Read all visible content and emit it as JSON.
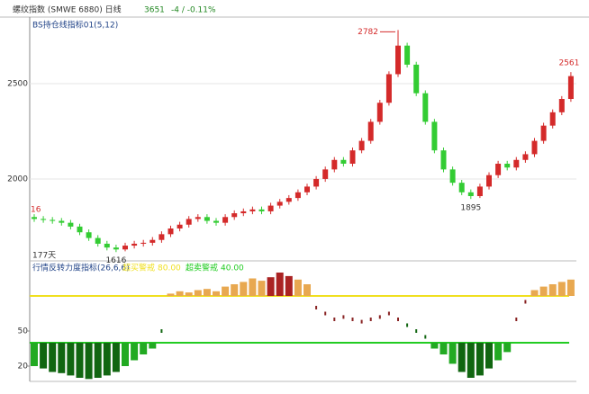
{
  "header": {
    "title": "螺纹指数 (SMWE 6880) 日线",
    "price": "3651",
    "change": "-4 / -0.11%"
  },
  "chart_data": [
    {
      "type": "candlestick",
      "title": "BS持仓线指标01(5,12)",
      "open": [
        1800,
        1790,
        1785,
        1780,
        1770,
        1750,
        1720,
        1690,
        1660,
        1640,
        1630,
        1650,
        1660,
        1665,
        1680,
        1710,
        1740,
        1760,
        1790,
        1800,
        1780,
        1770,
        1800,
        1820,
        1830,
        1840,
        1830,
        1860,
        1880,
        1900,
        1930,
        1960,
        2000,
        2050,
        2100,
        2080,
        2150,
        2200,
        2300,
        2400,
        2550,
        2700,
        2600,
        2450,
        2300,
        2150,
        2050,
        1980,
        1930,
        1910,
        1960,
        2020,
        2080,
        2060,
        2100,
        2130,
        2200,
        2280,
        2350,
        2420
      ],
      "high": [
        1815,
        1805,
        1800,
        1795,
        1785,
        1765,
        1735,
        1705,
        1675,
        1655,
        1665,
        1675,
        1680,
        1695,
        1725,
        1755,
        1775,
        1805,
        1815,
        1815,
        1795,
        1815,
        1835,
        1845,
        1855,
        1855,
        1875,
        1895,
        1915,
        1945,
        1975,
        2015,
        2065,
        2115,
        2115,
        2165,
        2215,
        2315,
        2415,
        2565,
        2782,
        2715,
        2615,
        2465,
        2315,
        2165,
        2065,
        1995,
        1945,
        1975,
        2035,
        2095,
        2095,
        2115,
        2145,
        2215,
        2295,
        2365,
        2435,
        2561
      ],
      "low": [
        1775,
        1770,
        1765,
        1755,
        1735,
        1705,
        1675,
        1645,
        1625,
        1616,
        1620,
        1635,
        1645,
        1650,
        1665,
        1695,
        1725,
        1745,
        1775,
        1765,
        1755,
        1755,
        1785,
        1805,
        1815,
        1815,
        1815,
        1845,
        1865,
        1885,
        1915,
        1945,
        1985,
        2035,
        2065,
        2065,
        2135,
        2185,
        2285,
        2385,
        2535,
        2585,
        2435,
        2285,
        2135,
        2035,
        1965,
        1915,
        1895,
        1900,
        1945,
        2005,
        2045,
        2045,
        2085,
        2115,
        2185,
        2265,
        2335,
        2405
      ],
      "close": [
        1790,
        1785,
        1780,
        1770,
        1750,
        1720,
        1690,
        1660,
        1640,
        1630,
        1650,
        1660,
        1665,
        1680,
        1710,
        1740,
        1760,
        1790,
        1800,
        1780,
        1770,
        1800,
        1820,
        1830,
        1840,
        1830,
        1860,
        1880,
        1900,
        1930,
        1960,
        2000,
        2050,
        2100,
        2080,
        2150,
        2200,
        2300,
        2400,
        2550,
        2700,
        2600,
        2450,
        2300,
        2150,
        2050,
        1980,
        1930,
        1910,
        1960,
        2020,
        2080,
        2060,
        2100,
        2130,
        2200,
        2280,
        2350,
        2420,
        2540
      ],
      "up_color": "#d42a2a",
      "down_color": "#33cc33",
      "ylim": [
        1570,
        2845
      ],
      "yticks": [
        2000,
        2500
      ],
      "grid": true,
      "annotations": [
        "16",
        "177天"
      ]
    },
    {
      "type": "bar",
      "title": "行情反转力度指标(26,6,6)",
      "values": [
        20,
        18,
        15,
        14,
        12,
        10,
        9,
        10,
        12,
        15,
        20,
        25,
        30,
        35,
        50,
        82,
        84,
        83,
        85,
        86,
        84,
        88,
        90,
        92,
        95,
        93,
        96,
        100,
        97,
        94,
        90,
        70,
        65,
        60,
        62,
        60,
        58,
        60,
        62,
        65,
        60,
        55,
        50,
        45,
        35,
        30,
        22,
        15,
        10,
        12,
        18,
        25,
        32,
        60,
        75,
        85,
        88,
        90,
        92,
        94
      ],
      "thresholds": [
        {
          "label": "超买警戒",
          "value": 80,
          "value_label": "80.00",
          "color": "#f0e020"
        },
        {
          "label": "超卖警戒",
          "value": 40,
          "value_label": "40.00",
          "color": "#22cc22"
        }
      ],
      "ylim": [
        0,
        100
      ],
      "yticks": [
        20,
        50
      ]
    }
  ]
}
